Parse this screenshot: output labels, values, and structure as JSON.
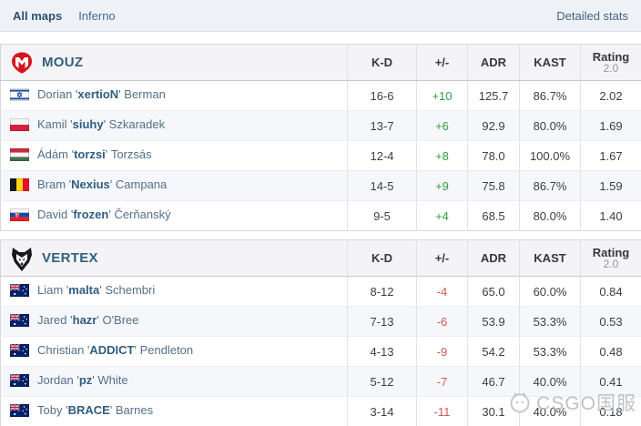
{
  "tabs": {
    "all_maps": "All maps",
    "inferno": "Inferno",
    "detailed_stats": "Detailed stats"
  },
  "columns": [
    "K-D",
    "+/-",
    "ADR",
    "KAST"
  ],
  "rating_column": {
    "label": "Rating",
    "sub": "2.0"
  },
  "teams": [
    {
      "name": "MOUZ",
      "players": [
        {
          "country": "israel",
          "first": "Dorian",
          "nick": "xertioN",
          "last": "Berman",
          "kd": "16-6",
          "plusminus": "+10",
          "adr": "125.7",
          "kast": "86.7%",
          "rating": "2.02"
        },
        {
          "country": "poland",
          "first": "Kamil",
          "nick": "siuhy",
          "last": "Szkaradek",
          "kd": "13-7",
          "plusminus": "+6",
          "adr": "92.9",
          "kast": "80.0%",
          "rating": "1.69"
        },
        {
          "country": "hungary",
          "first": "Ádám",
          "nick": "torzsi",
          "last": "Torzsás",
          "kd": "12-4",
          "plusminus": "+8",
          "adr": "78.0",
          "kast": "100.0%",
          "rating": "1.67"
        },
        {
          "country": "belgium",
          "first": "Bram",
          "nick": "Nexius",
          "last": "Campana",
          "kd": "14-5",
          "plusminus": "+9",
          "adr": "75.8",
          "kast": "86.7%",
          "rating": "1.59"
        },
        {
          "country": "slovakia",
          "first": "David",
          "nick": "frozen",
          "last": "Čerňanský",
          "kd": "9-5",
          "plusminus": "+4",
          "adr": "68.5",
          "kast": "80.0%",
          "rating": "1.40"
        }
      ]
    },
    {
      "name": "VERTEX",
      "players": [
        {
          "country": "australia",
          "first": "Liam",
          "nick": "malta",
          "last": "Schembri",
          "kd": "8-12",
          "plusminus": "-4",
          "adr": "65.0",
          "kast": "60.0%",
          "rating": "0.84"
        },
        {
          "country": "australia",
          "first": "Jared",
          "nick": "hazr",
          "last": "O'Bree",
          "kd": "7-13",
          "plusminus": "-6",
          "adr": "53.9",
          "kast": "53.3%",
          "rating": "0.53"
        },
        {
          "country": "australia",
          "first": "Christian",
          "nick": "ADDICT",
          "last": "Pendleton",
          "kd": "4-13",
          "plusminus": "-9",
          "adr": "54.2",
          "kast": "53.3%",
          "rating": "0.48"
        },
        {
          "country": "australia",
          "first": "Jordan",
          "nick": "pz",
          "last": "White",
          "kd": "5-12",
          "plusminus": "-7",
          "adr": "46.7",
          "kast": "40.0%",
          "rating": "0.41"
        },
        {
          "country": "australia",
          "first": "Toby",
          "nick": "BRACE",
          "last": "Barnes",
          "kd": "3-14",
          "plusminus": "-11",
          "adr": "30.1",
          "kast": "40.0%",
          "rating": "0.18"
        }
      ]
    }
  ],
  "watermark": {
    "text": "CSGO国服"
  },
  "colors": {
    "positive": "#2f9e44",
    "negative": "#d05858",
    "accent_link": "#2f5d81"
  }
}
